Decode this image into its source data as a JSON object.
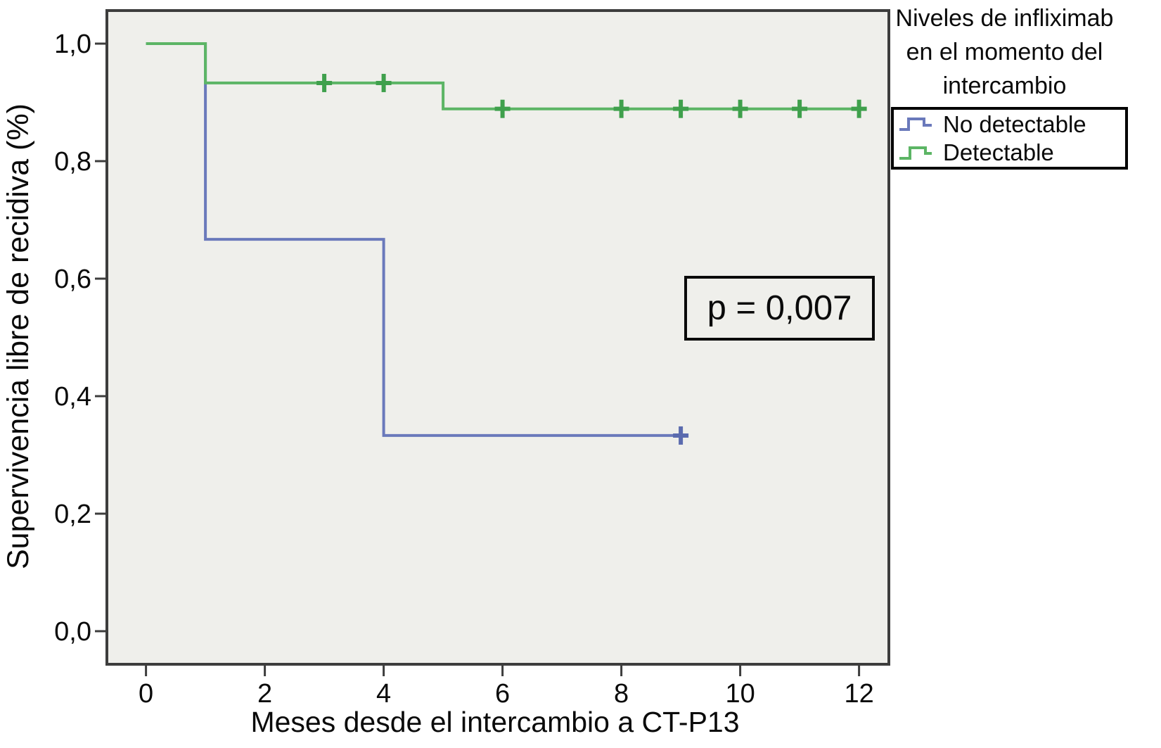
{
  "figure": {
    "y_axis_title": "Supervivencia libre de recidiva (%)",
    "x_axis_title": "Meses desde el intercambio a CT-P13",
    "p_label": "p = 0,007",
    "legend": {
      "title_lines": [
        "Niveles de infliximab",
        "en el momento del",
        "intercambio"
      ],
      "items": [
        {
          "label": "No detectable",
          "color": "#6a79bb"
        },
        {
          "label": "Detectable",
          "color": "#5cb565"
        }
      ]
    }
  },
  "chart_data": {
    "type": "line",
    "subtype": "kaplan-meier-step",
    "title": "",
    "xlabel": "Meses desde el intercambio a CT-P13",
    "ylabel": "Supervivencia libre de recidiva (%)",
    "xlim": [
      0,
      12
    ],
    "ylim": [
      0.0,
      1.0
    ],
    "grid": false,
    "legend_position": "outside-top-right",
    "legend_title": "Niveles de infliximab en el momento del intercambio",
    "annotation": "p = 0,007",
    "x_ticks": {
      "values": [
        0,
        2,
        4,
        6,
        8,
        10,
        12
      ],
      "labels": [
        "0",
        "2",
        "4",
        "6",
        "8",
        "10",
        "12"
      ]
    },
    "y_ticks": {
      "values": [
        0.0,
        0.2,
        0.4,
        0.6,
        0.8,
        1.0
      ],
      "labels": [
        "0,0",
        "0,2",
        "0,4",
        "0,6",
        "0,8",
        "1,0"
      ]
    },
    "series": [
      {
        "name": "No detectable",
        "color": "#6a79bb",
        "censor_color": "#5b6bae",
        "steps": [
          [
            0,
            1.0
          ],
          [
            1,
            1.0
          ],
          [
            1,
            0.667
          ],
          [
            4,
            0.667
          ],
          [
            4,
            0.333
          ],
          [
            9,
            0.333
          ]
        ],
        "censored": [
          [
            9,
            0.333
          ]
        ]
      },
      {
        "name": "Detectable",
        "color": "#5cb565",
        "censor_color": "#3fa04c",
        "steps": [
          [
            0,
            1.0
          ],
          [
            1,
            1.0
          ],
          [
            1,
            0.933
          ],
          [
            5,
            0.933
          ],
          [
            5,
            0.889
          ],
          [
            12,
            0.889
          ]
        ],
        "censored": [
          [
            3,
            0.933
          ],
          [
            4,
            0.933
          ],
          [
            6,
            0.889
          ],
          [
            8,
            0.889
          ],
          [
            9,
            0.889
          ],
          [
            10,
            0.889
          ],
          [
            11,
            0.889
          ],
          [
            12,
            0.889
          ]
        ]
      }
    ],
    "plot_bg": "#efefeb",
    "frame_color": "#3d3d3d",
    "tick_color": "#3d3d3d",
    "text_color": "#0a0a0a"
  }
}
